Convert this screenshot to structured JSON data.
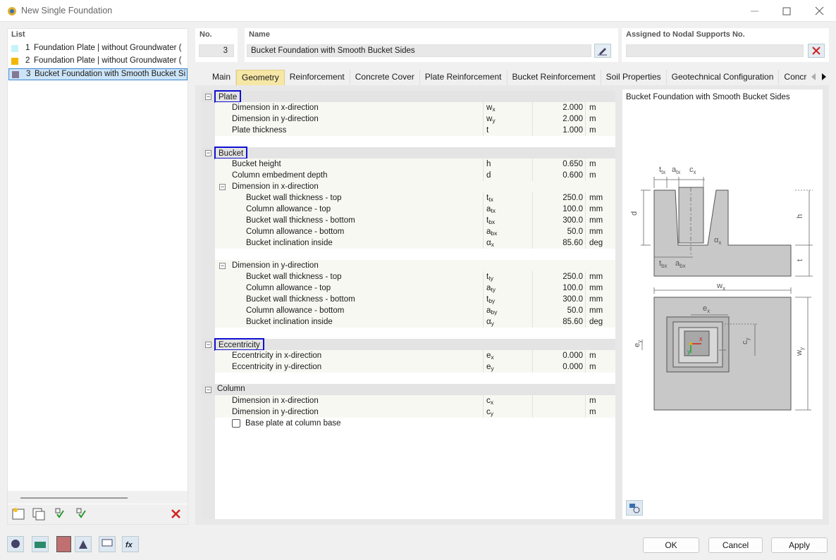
{
  "window": {
    "title": "New Single Foundation"
  },
  "list": {
    "label": "List",
    "selected": 2,
    "items": [
      {
        "no": "1",
        "name": "Foundation Plate | without Groundwater (",
        "color": "#c6f3f8"
      },
      {
        "no": "2",
        "name": "Foundation Plate | without Groundwater (",
        "color": "#f2b705"
      },
      {
        "no": "3",
        "name": "Bucket Foundation with Smooth Bucket Si",
        "color": "#857894"
      }
    ]
  },
  "header": {
    "no_label": "No.",
    "no": "3",
    "name_label": "Name",
    "name": "Bucket Foundation with Smooth Bucket Sides",
    "assigned_label": "Assigned to Nodal Supports No."
  },
  "tabs": {
    "active": 1,
    "items": [
      "Main",
      "Geometry",
      "Reinforcement",
      "Concrete Cover",
      "Plate Reinforcement",
      "Bucket Reinforcement",
      "Soil Properties",
      "Geotechnical Configuration",
      "Concrete"
    ]
  },
  "sections": [
    {
      "title": "Plate",
      "highlighted": true,
      "rows": [
        {
          "label": "Dimension in x-direction",
          "symbol": "w",
          "sub": "x",
          "value": "2.000",
          "unit": "m"
        },
        {
          "label": "Dimension in y-direction",
          "symbol": "w",
          "sub": "y",
          "value": "2.000",
          "unit": "m"
        },
        {
          "label": "Plate thickness",
          "symbol": "t",
          "value": "1.000",
          "unit": "m"
        }
      ]
    },
    {
      "title": "Bucket",
      "highlighted": true,
      "rows": [
        {
          "label": "Bucket height",
          "symbol": "h",
          "value": "0.650",
          "unit": "m"
        },
        {
          "label": "Column embedment depth",
          "symbol": "d",
          "value": "0.600",
          "unit": "m"
        }
      ],
      "groups": [
        {
          "title": "Dimension in x-direction",
          "rows": [
            {
              "label": "Bucket wall thickness - top",
              "symbol": "t",
              "sub": "tx",
              "value": "250.0",
              "unit": "mm"
            },
            {
              "label": "Column allowance - top",
              "symbol": "a",
              "sub": "tx",
              "value": "100.0",
              "unit": "mm"
            },
            {
              "label": "Bucket wall thickness - bottom",
              "symbol": "t",
              "sub": "bx",
              "value": "300.0",
              "unit": "mm"
            },
            {
              "label": "Column allowance - bottom",
              "symbol": "a",
              "sub": "bx",
              "value": "50.0",
              "unit": "mm"
            },
            {
              "label": "Bucket inclination inside",
              "symbol": "α",
              "sub": "x",
              "value": "85.60",
              "unit": "deg"
            }
          ]
        },
        {
          "title": "Dimension in y-direction",
          "rows": [
            {
              "label": "Bucket wall thickness - top",
              "symbol": "t",
              "sub": "ty",
              "value": "250.0",
              "unit": "mm"
            },
            {
              "label": "Column allowance - top",
              "symbol": "a",
              "sub": "ty",
              "value": "100.0",
              "unit": "mm"
            },
            {
              "label": "Bucket wall thickness - bottom",
              "symbol": "t",
              "sub": "by",
              "value": "300.0",
              "unit": "mm"
            },
            {
              "label": "Column allowance - bottom",
              "symbol": "a",
              "sub": "by",
              "value": "50.0",
              "unit": "mm"
            },
            {
              "label": "Bucket inclination inside",
              "symbol": "α",
              "sub": "y",
              "value": "85.60",
              "unit": "deg"
            }
          ]
        }
      ]
    },
    {
      "title": "Eccentricity",
      "highlighted": true,
      "rows": [
        {
          "label": "Eccentricity in x-direction",
          "symbol": "e",
          "sub": "x",
          "value": "0.000",
          "unit": "m"
        },
        {
          "label": "Eccentricity in y-direction",
          "symbol": "e",
          "sub": "y",
          "value": "0.000",
          "unit": "m"
        }
      ]
    },
    {
      "title": "Column",
      "highlighted": false,
      "rows": [
        {
          "label": "Dimension in x-direction",
          "symbol": "c",
          "sub": "x",
          "unit": "m"
        },
        {
          "label": "Dimension in y-direction",
          "symbol": "c",
          "sub": "y",
          "unit": "m"
        }
      ],
      "checkbox": {
        "label": "Base plate at column base",
        "checked": false
      }
    }
  ],
  "preview": {
    "title": "Bucket Foundation with Smooth Bucket Sides",
    "labels": [
      {
        "text": "t",
        "sub": "tx"
      },
      {
        "text": "a",
        "sub": "tx"
      },
      {
        "text": "c",
        "sub": "x"
      },
      {
        "text": "d"
      },
      {
        "text": "h"
      },
      {
        "text": "t"
      },
      {
        "text": "α",
        "sub": "x"
      },
      {
        "text": "t",
        "sub": "bx"
      },
      {
        "text": "a",
        "sub": "bx"
      },
      {
        "text": "w",
        "sub": "x"
      },
      {
        "text": "e",
        "sub": "x"
      },
      {
        "text": "e",
        "sub": "y"
      },
      {
        "text": "c",
        "sub": "y"
      },
      {
        "text": "w",
        "sub": "y"
      },
      {
        "text": "x"
      },
      {
        "text": "y"
      }
    ]
  },
  "buttons": [
    "OK",
    "Cancel",
    "Apply"
  ]
}
